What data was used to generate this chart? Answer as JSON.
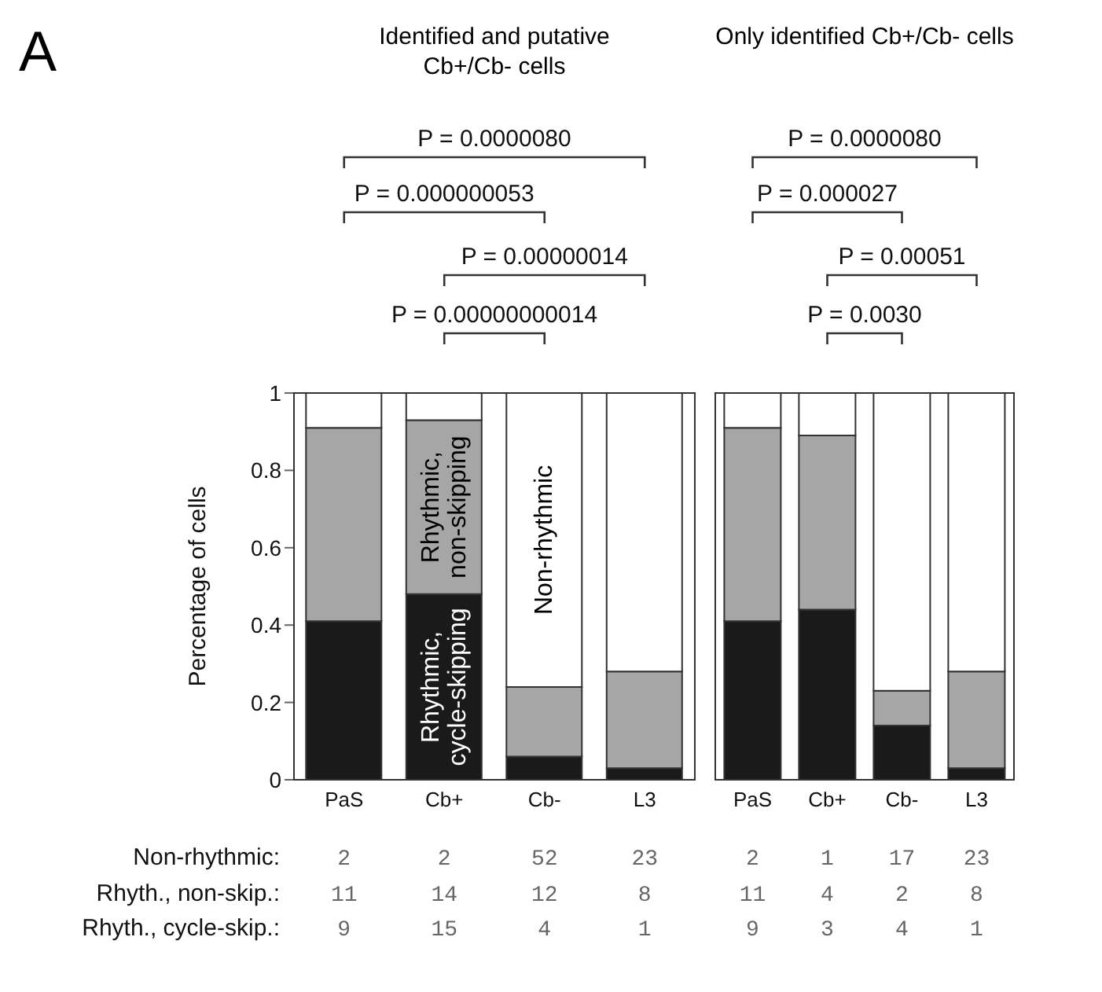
{
  "chart_data": [
    {
      "type": "bar",
      "stacked": true,
      "title": "Identified and putative Cb+/Cb- cells",
      "ylabel": "Percentage of cells",
      "categories": [
        "PaS",
        "Cb+",
        "Cb-",
        "L3"
      ],
      "ylim": [
        0,
        1
      ],
      "yticks": [
        0,
        0.2,
        0.4,
        0.6,
        0.8,
        1
      ],
      "series": [
        {
          "name": "Rhythmic, cycle-skipping",
          "color": "#1a1a1a",
          "values": [
            0.41,
            0.48,
            0.06,
            0.03
          ]
        },
        {
          "name": "Rhythmic, non-skipping",
          "color": "#a6a6a6",
          "values": [
            0.5,
            0.45,
            0.18,
            0.25
          ]
        },
        {
          "name": "Non-rhythmic",
          "color": "#ffffff",
          "values": [
            0.09,
            0.07,
            0.76,
            0.72
          ]
        }
      ],
      "annotations": [
        "A",
        "P = 0.0000080",
        "P = 0.000000053",
        "P = 0.00000014",
        "P = 0.00000000014",
        "Non-rhythmic:",
        "Rhyth., non-skip.:",
        "Rhyth., cycle-skip.:",
        "2",
        "2",
        "52",
        "23",
        "11",
        "14",
        "12",
        "8",
        "9",
        "15",
        "4",
        "1"
      ]
    },
    {
      "type": "bar",
      "stacked": true,
      "title": "Only identified Cb+/Cb- cells",
      "tick_labels": "x",
      "categories": [
        "PaS",
        "Cb+",
        "Cb-",
        "L3"
      ],
      "ylim": [
        0,
        1
      ],
      "yticks": [
        0,
        0.2,
        0.4,
        0.6,
        0.8,
        1
      ],
      "series": [
        {
          "color": "#1a1a1a",
          "values": [
            0.41,
            0.44,
            0.14,
            0.03
          ]
        },
        {
          "color": "#a6a6a6",
          "values": [
            0.5,
            0.45,
            0.09,
            0.25
          ]
        },
        {
          "color": "#ffffff",
          "values": [
            0.09,
            0.11,
            0.77,
            0.72
          ]
        }
      ],
      "annotations": [
        "P = 0.0000080",
        "P = 0.000027",
        "P = 0.00051",
        "P = 0.0030",
        "2",
        "1",
        "17",
        "23",
        "11",
        "4",
        "2",
        "8",
        "9",
        "3",
        "4",
        "1"
      ]
    }
  ]
}
